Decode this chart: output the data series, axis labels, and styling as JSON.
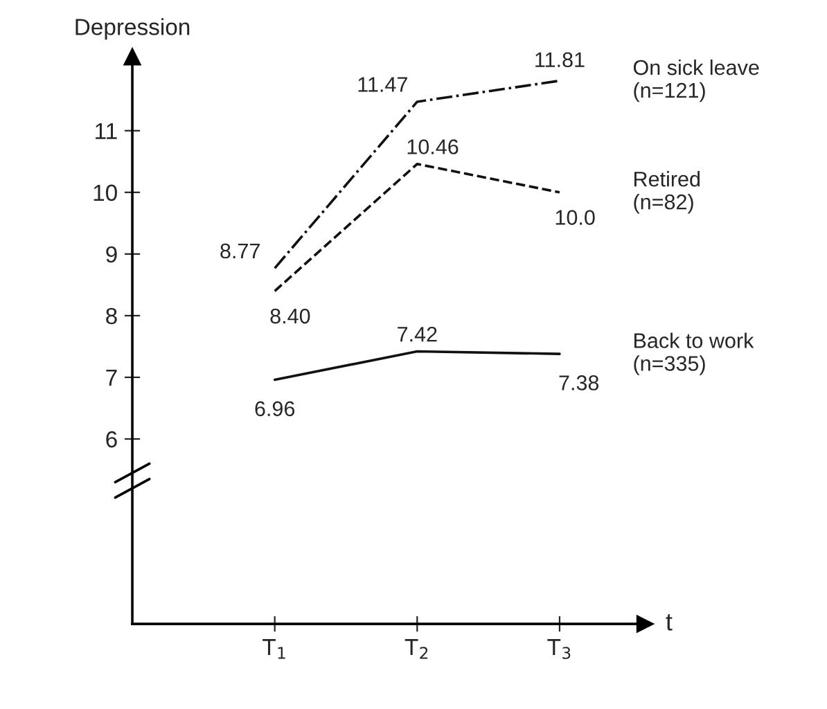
{
  "chart_data": {
    "type": "line",
    "ylabel": "Depression",
    "xlabel": "t",
    "categories": [
      "T$_{1}$",
      "T$_{2}$",
      "T$_{3}$"
    ],
    "series": [
      {
        "name": "On sick leave\n(n=121)",
        "color": "#111111",
        "values": [
          8.77,
          11.47,
          11.81
        ],
        "value_labels": [
          "8.77",
          "11.47",
          "11.81"
        ],
        "line_style": "dashdot"
      },
      {
        "name": "Retired\n(n=82)",
        "color": "#111111",
        "values": [
          8.4,
          10.46,
          10.0
        ],
        "value_labels": [
          "8.40",
          "10.46",
          "10.0"
        ],
        "line_style": "dashed"
      },
      {
        "name": "Back to work\n(n=335)",
        "color": "#111111",
        "values": [
          6.96,
          7.42,
          7.38
        ],
        "value_labels": [
          "6.96",
          "7.42",
          "7.38"
        ],
        "line_style": "solid"
      }
    ],
    "ylim": [
      3,
      12.2
    ],
    "yticks": [
      6,
      7,
      8,
      9,
      10,
      11
    ],
    "grid": false,
    "legend": false,
    "marker": "none"
  }
}
